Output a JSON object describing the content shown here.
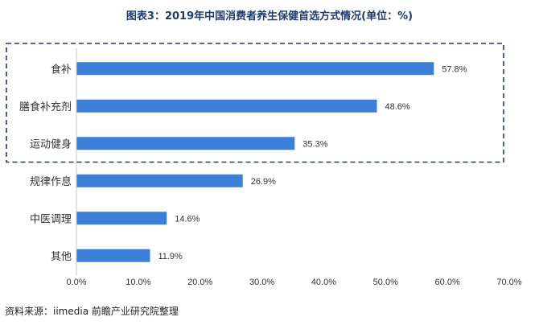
{
  "title": "图表3：2019年中国消费者养生保健首选方式情况(单位：%)",
  "source": "资料来源：iimedia 前瞻产业研究院整理",
  "chart_data": {
    "type": "bar",
    "orientation": "horizontal",
    "categories": [
      "食补",
      "膳食补充剂",
      "运动健身",
      "规律作息",
      "中医调理",
      "其他"
    ],
    "values": [
      57.8,
      48.6,
      35.3,
      26.9,
      14.6,
      11.9
    ],
    "value_labels": [
      "57.8%",
      "48.6%",
      "35.3%",
      "26.9%",
      "14.6%",
      "11.9%"
    ],
    "x_ticks": [
      0,
      10,
      20,
      30,
      40,
      50,
      60,
      70
    ],
    "x_tick_labels": [
      "0.0%",
      "10.0%",
      "20.0%",
      "30.0%",
      "40.0%",
      "50.0%",
      "60.0%",
      "70.0%"
    ],
    "xlim": [
      0,
      70
    ],
    "bar_color": "#3b7fd9",
    "highlight_box_color": "#1f3c6e",
    "highlighted_categories": [
      "食补",
      "膳食补充剂",
      "运动健身"
    ],
    "grid": false,
    "legend": "none"
  }
}
